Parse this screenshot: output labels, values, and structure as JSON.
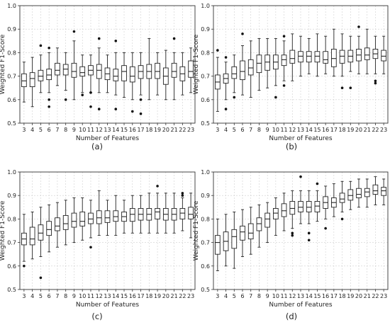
{
  "figure": {
    "panel_labels": [
      "(a)",
      "(b)",
      "(c)",
      "(d)"
    ]
  },
  "chart_data": [
    {
      "type": "box",
      "label": "(a)",
      "xlabel": "Number of Features",
      "ylabel": "Weighted F1-Score",
      "ylim": [
        0.5,
        1.0
      ],
      "yticks": [
        "0.5",
        "0.6",
        "0.7",
        "0.8",
        "0.9",
        "1.0"
      ],
      "grid": true,
      "categories": [
        "3",
        "4",
        "5",
        "6",
        "7",
        "8",
        "9",
        "10",
        "11",
        "12",
        "13",
        "14",
        "15",
        "16",
        "17",
        "18",
        "19",
        "20",
        "21",
        "22",
        "23"
      ],
      "boxes": [
        {
          "whislo": 0.59,
          "q1": 0.655,
          "med": 0.68,
          "q3": 0.71,
          "whishi": 0.76,
          "fliers": []
        },
        {
          "whislo": 0.57,
          "q1": 0.655,
          "med": 0.69,
          "q3": 0.715,
          "whishi": 0.78,
          "fliers": []
        },
        {
          "whislo": 0.63,
          "q1": 0.68,
          "med": 0.7,
          "q3": 0.725,
          "whishi": 0.79,
          "fliers": [
            0.83
          ]
        },
        {
          "whislo": 0.63,
          "q1": 0.685,
          "med": 0.705,
          "q3": 0.73,
          "whishi": 0.8,
          "fliers": [
            0.82,
            0.6,
            0.57
          ]
        },
        {
          "whislo": 0.66,
          "q1": 0.705,
          "med": 0.725,
          "q3": 0.755,
          "whishi": 0.82,
          "fliers": []
        },
        {
          "whislo": 0.64,
          "q1": 0.705,
          "med": 0.73,
          "q3": 0.75,
          "whishi": 0.8,
          "fliers": [
            0.6
          ]
        },
        {
          "whislo": 0.6,
          "q1": 0.695,
          "med": 0.72,
          "q3": 0.755,
          "whishi": 0.85,
          "fliers": [
            0.89
          ]
        },
        {
          "whislo": 0.63,
          "q1": 0.7,
          "med": 0.715,
          "q3": 0.74,
          "whishi": 0.79,
          "fliers": [
            0.62
          ]
        },
        {
          "whislo": 0.63,
          "q1": 0.705,
          "med": 0.725,
          "q3": 0.745,
          "whishi": 0.79,
          "fliers": [
            0.63,
            0.57
          ]
        },
        {
          "whislo": 0.63,
          "q1": 0.69,
          "med": 0.725,
          "q3": 0.75,
          "whishi": 0.82,
          "fliers": [
            0.86,
            0.56
          ]
        },
        {
          "whislo": 0.63,
          "q1": 0.685,
          "med": 0.71,
          "q3": 0.735,
          "whishi": 0.79,
          "fliers": []
        },
        {
          "whislo": 0.62,
          "q1": 0.68,
          "med": 0.7,
          "q3": 0.73,
          "whishi": 0.8,
          "fliers": [
            0.85,
            0.56
          ]
        },
        {
          "whislo": 0.61,
          "q1": 0.68,
          "med": 0.72,
          "q3": 0.745,
          "whishi": 0.8,
          "fliers": []
        },
        {
          "whislo": 0.6,
          "q1": 0.675,
          "med": 0.7,
          "q3": 0.74,
          "whishi": 0.8,
          "fliers": [
            0.55
          ]
        },
        {
          "whislo": 0.62,
          "q1": 0.69,
          "med": 0.72,
          "q3": 0.745,
          "whishi": 0.8,
          "fliers": [
            0.6,
            0.54
          ]
        },
        {
          "whislo": 0.6,
          "q1": 0.69,
          "med": 0.72,
          "q3": 0.75,
          "whishi": 0.86,
          "fliers": []
        },
        {
          "whislo": 0.62,
          "q1": 0.69,
          "med": 0.72,
          "q3": 0.755,
          "whishi": 0.8,
          "fliers": []
        },
        {
          "whislo": 0.6,
          "q1": 0.665,
          "med": 0.7,
          "q3": 0.735,
          "whishi": 0.81,
          "fliers": []
        },
        {
          "whislo": 0.6,
          "q1": 0.695,
          "med": 0.72,
          "q3": 0.755,
          "whishi": 0.8,
          "fliers": [
            0.86
          ]
        },
        {
          "whislo": 0.62,
          "q1": 0.68,
          "med": 0.71,
          "q3": 0.74,
          "whishi": 0.8,
          "fliers": []
        },
        {
          "whislo": 0.63,
          "q1": 0.695,
          "med": 0.72,
          "q3": 0.765,
          "whishi": 0.82,
          "fliers": []
        }
      ]
    },
    {
      "type": "box",
      "label": "(b)",
      "xlabel": "Number of Features",
      "ylabel": "Weighted F1-Score",
      "ylim": [
        0.5,
        1.0
      ],
      "yticks": [
        "0.5",
        "0.6",
        "0.7",
        "0.8",
        "0.9",
        "1.0"
      ],
      "grid": true,
      "categories": [
        "3",
        "4",
        "5",
        "6",
        "7",
        "8",
        "9",
        "10",
        "11",
        "12",
        "13",
        "14",
        "15",
        "16",
        "17",
        "18",
        "19",
        "20",
        "21",
        "22",
        "23"
      ],
      "boxes": [
        {
          "whislo": 0.55,
          "q1": 0.645,
          "med": 0.675,
          "q3": 0.705,
          "whishi": 0.78,
          "fliers": [
            0.81
          ]
        },
        {
          "whislo": 0.6,
          "q1": 0.67,
          "med": 0.69,
          "q3": 0.71,
          "whishi": 0.76,
          "fliers": [
            0.78,
            0.56
          ]
        },
        {
          "whislo": 0.63,
          "q1": 0.69,
          "med": 0.71,
          "q3": 0.74,
          "whishi": 0.79,
          "fliers": [
            0.61
          ]
        },
        {
          "whislo": 0.62,
          "q1": 0.685,
          "med": 0.72,
          "q3": 0.765,
          "whishi": 0.83,
          "fliers": [
            0.88
          ]
        },
        {
          "whislo": 0.61,
          "q1": 0.705,
          "med": 0.735,
          "q3": 0.77,
          "whishi": 0.85,
          "fliers": []
        },
        {
          "whislo": 0.64,
          "q1": 0.715,
          "med": 0.755,
          "q3": 0.79,
          "whishi": 0.86,
          "fliers": []
        },
        {
          "whislo": 0.65,
          "q1": 0.725,
          "med": 0.76,
          "q3": 0.79,
          "whishi": 0.86,
          "fliers": []
        },
        {
          "whislo": 0.66,
          "q1": 0.73,
          "med": 0.76,
          "q3": 0.79,
          "whishi": 0.86,
          "fliers": [
            0.61
          ]
        },
        {
          "whislo": 0.68,
          "q1": 0.745,
          "med": 0.77,
          "q3": 0.79,
          "whishi": 0.85,
          "fliers": [
            0.87,
            0.66
          ]
        },
        {
          "whislo": 0.68,
          "q1": 0.755,
          "med": 0.775,
          "q3": 0.81,
          "whishi": 0.88,
          "fliers": []
        },
        {
          "whislo": 0.7,
          "q1": 0.76,
          "med": 0.785,
          "q3": 0.805,
          "whishi": 0.87,
          "fliers": []
        },
        {
          "whislo": 0.71,
          "q1": 0.76,
          "med": 0.785,
          "q3": 0.805,
          "whishi": 0.86,
          "fliers": []
        },
        {
          "whislo": 0.7,
          "q1": 0.76,
          "med": 0.785,
          "q3": 0.805,
          "whishi": 0.88,
          "fliers": []
        },
        {
          "whislo": 0.71,
          "q1": 0.755,
          "med": 0.77,
          "q3": 0.805,
          "whishi": 0.87,
          "fliers": []
        },
        {
          "whislo": 0.7,
          "q1": 0.74,
          "med": 0.775,
          "q3": 0.815,
          "whishi": 0.9,
          "fliers": []
        },
        {
          "whislo": 0.7,
          "q1": 0.755,
          "med": 0.785,
          "q3": 0.81,
          "whishi": 0.88,
          "fliers": [
            0.65
          ]
        },
        {
          "whislo": 0.72,
          "q1": 0.76,
          "med": 0.785,
          "q3": 0.81,
          "whishi": 0.87,
          "fliers": [
            0.65
          ]
        },
        {
          "whislo": 0.71,
          "q1": 0.765,
          "med": 0.79,
          "q3": 0.815,
          "whishi": 0.87,
          "fliers": [
            0.91
          ]
        },
        {
          "whislo": 0.71,
          "q1": 0.77,
          "med": 0.79,
          "q3": 0.82,
          "whishi": 0.9,
          "fliers": []
        },
        {
          "whislo": 0.71,
          "q1": 0.775,
          "med": 0.795,
          "q3": 0.815,
          "whishi": 0.87,
          "fliers": [
            0.68,
            0.67
          ]
        },
        {
          "whislo": 0.71,
          "q1": 0.765,
          "med": 0.785,
          "q3": 0.81,
          "whishi": 0.87,
          "fliers": []
        }
      ]
    },
    {
      "type": "box",
      "label": "(c)",
      "xlabel": "Number of Features",
      "ylabel": "Weighted F1-Score",
      "ylim": [
        0.5,
        1.0
      ],
      "yticks": [
        "0.5",
        "0.6",
        "0.7",
        "0.8",
        "0.9",
        "1.0"
      ],
      "grid": true,
      "categories": [
        "3",
        "4",
        "5",
        "6",
        "7",
        "8",
        "9",
        "10",
        "11",
        "12",
        "13",
        "14",
        "15",
        "16",
        "17",
        "18",
        "19",
        "20",
        "21",
        "22",
        "23"
      ],
      "boxes": [
        {
          "whislo": 0.62,
          "q1": 0.69,
          "med": 0.715,
          "q3": 0.74,
          "whishi": 0.82,
          "fliers": [
            0.6
          ]
        },
        {
          "whislo": 0.63,
          "q1": 0.69,
          "med": 0.715,
          "q3": 0.765,
          "whishi": 0.83,
          "fliers": []
        },
        {
          "whislo": 0.64,
          "q1": 0.71,
          "med": 0.74,
          "q3": 0.775,
          "whishi": 0.85,
          "fliers": [
            0.55
          ]
        },
        {
          "whislo": 0.66,
          "q1": 0.73,
          "med": 0.755,
          "q3": 0.79,
          "whishi": 0.86,
          "fliers": []
        },
        {
          "whislo": 0.68,
          "q1": 0.75,
          "med": 0.77,
          "q3": 0.805,
          "whishi": 0.87,
          "fliers": []
        },
        {
          "whislo": 0.69,
          "q1": 0.755,
          "med": 0.78,
          "q3": 0.815,
          "whishi": 0.88,
          "fliers": []
        },
        {
          "whislo": 0.7,
          "q1": 0.765,
          "med": 0.79,
          "q3": 0.825,
          "whishi": 0.89,
          "fliers": []
        },
        {
          "whislo": 0.71,
          "q1": 0.77,
          "med": 0.79,
          "q3": 0.83,
          "whishi": 0.89,
          "fliers": []
        },
        {
          "whislo": 0.72,
          "q1": 0.78,
          "med": 0.8,
          "q3": 0.825,
          "whishi": 0.88,
          "fliers": [
            0.68
          ]
        },
        {
          "whislo": 0.73,
          "q1": 0.78,
          "med": 0.805,
          "q3": 0.835,
          "whishi": 0.92,
          "fliers": []
        },
        {
          "whislo": 0.73,
          "q1": 0.785,
          "med": 0.805,
          "q3": 0.835,
          "whishi": 0.88,
          "fliers": []
        },
        {
          "whislo": 0.73,
          "q1": 0.79,
          "med": 0.81,
          "q3": 0.835,
          "whishi": 0.9,
          "fliers": []
        },
        {
          "whislo": 0.74,
          "q1": 0.79,
          "med": 0.81,
          "q3": 0.83,
          "whishi": 0.88,
          "fliers": []
        },
        {
          "whislo": 0.74,
          "q1": 0.79,
          "med": 0.82,
          "q3": 0.845,
          "whishi": 0.9,
          "fliers": []
        },
        {
          "whislo": 0.74,
          "q1": 0.795,
          "med": 0.82,
          "q3": 0.845,
          "whishi": 0.9,
          "fliers": []
        },
        {
          "whislo": 0.74,
          "q1": 0.795,
          "med": 0.82,
          "q3": 0.845,
          "whishi": 0.91,
          "fliers": []
        },
        {
          "whislo": 0.74,
          "q1": 0.8,
          "med": 0.83,
          "q3": 0.845,
          "whishi": 0.91,
          "fliers": [
            0.94
          ]
        },
        {
          "whislo": 0.74,
          "q1": 0.795,
          "med": 0.82,
          "q3": 0.845,
          "whishi": 0.91,
          "fliers": []
        },
        {
          "whislo": 0.74,
          "q1": 0.795,
          "med": 0.82,
          "q3": 0.845,
          "whishi": 0.91,
          "fliers": []
        },
        {
          "whislo": 0.75,
          "q1": 0.8,
          "med": 0.825,
          "q3": 0.845,
          "whishi": 0.89,
          "fliers": [
            0.91,
            0.9
          ]
        },
        {
          "whislo": 0.72,
          "q1": 0.8,
          "med": 0.82,
          "q3": 0.85,
          "whishi": 0.91,
          "fliers": []
        }
      ]
    },
    {
      "type": "box",
      "label": "(d)",
      "xlabel": "Number of Features",
      "ylabel": "Weighted F1-Score",
      "ylim": [
        0.5,
        1.0
      ],
      "yticks": [
        "0.5",
        "0.6",
        "0.7",
        "0.8",
        "0.9",
        "1.0"
      ],
      "grid": true,
      "categories": [
        "3",
        "4",
        "5",
        "6",
        "7",
        "8",
        "9",
        "10",
        "11",
        "12",
        "13",
        "14",
        "15",
        "16",
        "17",
        "18",
        "19",
        "20",
        "21",
        "22",
        "23"
      ],
      "boxes": [
        {
          "whislo": 0.58,
          "q1": 0.65,
          "med": 0.7,
          "q3": 0.73,
          "whishi": 0.8,
          "fliers": []
        },
        {
          "whislo": 0.6,
          "q1": 0.665,
          "med": 0.705,
          "q3": 0.745,
          "whishi": 0.82,
          "fliers": []
        },
        {
          "whislo": 0.59,
          "q1": 0.675,
          "med": 0.725,
          "q3": 0.755,
          "whishi": 0.83,
          "fliers": []
        },
        {
          "whislo": 0.64,
          "q1": 0.71,
          "med": 0.745,
          "q3": 0.77,
          "whishi": 0.84,
          "fliers": []
        },
        {
          "whislo": 0.65,
          "q1": 0.715,
          "med": 0.74,
          "q3": 0.78,
          "whishi": 0.85,
          "fliers": []
        },
        {
          "whislo": 0.68,
          "q1": 0.75,
          "med": 0.78,
          "q3": 0.805,
          "whishi": 0.86,
          "fliers": []
        },
        {
          "whislo": 0.7,
          "q1": 0.765,
          "med": 0.8,
          "q3": 0.825,
          "whishi": 0.87,
          "fliers": []
        },
        {
          "whislo": 0.73,
          "q1": 0.8,
          "med": 0.825,
          "q3": 0.845,
          "whishi": 0.89,
          "fliers": []
        },
        {
          "whislo": 0.75,
          "q1": 0.81,
          "med": 0.835,
          "q3": 0.865,
          "whishi": 0.91,
          "fliers": []
        },
        {
          "whislo": 0.76,
          "q1": 0.82,
          "med": 0.845,
          "q3": 0.875,
          "whishi": 0.92,
          "fliers": [
            0.74,
            0.73
          ]
        },
        {
          "whislo": 0.78,
          "q1": 0.83,
          "med": 0.85,
          "q3": 0.875,
          "whishi": 0.92,
          "fliers": [
            0.98
          ]
        },
        {
          "whislo": 0.78,
          "q1": 0.83,
          "med": 0.85,
          "q3": 0.875,
          "whishi": 0.92,
          "fliers": [
            0.74,
            0.71
          ]
        },
        {
          "whislo": 0.79,
          "q1": 0.83,
          "med": 0.855,
          "q3": 0.875,
          "whishi": 0.92,
          "fliers": [
            0.95
          ]
        },
        {
          "whislo": 0.8,
          "q1": 0.845,
          "med": 0.87,
          "q3": 0.895,
          "whishi": 0.94,
          "fliers": [
            0.76
          ]
        },
        {
          "whislo": 0.81,
          "q1": 0.85,
          "med": 0.87,
          "q3": 0.89,
          "whishi": 0.95,
          "fliers": []
        },
        {
          "whislo": 0.83,
          "q1": 0.87,
          "med": 0.885,
          "q3": 0.91,
          "whishi": 0.96,
          "fliers": [
            0.8
          ]
        },
        {
          "whislo": 0.84,
          "q1": 0.88,
          "med": 0.9,
          "q3": 0.925,
          "whishi": 0.96,
          "fliers": []
        },
        {
          "whislo": 0.85,
          "q1": 0.89,
          "med": 0.905,
          "q3": 0.93,
          "whishi": 0.97,
          "fliers": []
        },
        {
          "whislo": 0.85,
          "q1": 0.895,
          "med": 0.915,
          "q3": 0.93,
          "whishi": 0.97,
          "fliers": []
        },
        {
          "whislo": 0.86,
          "q1": 0.905,
          "med": 0.92,
          "q3": 0.945,
          "whishi": 0.98,
          "fliers": []
        },
        {
          "whislo": 0.86,
          "q1": 0.9,
          "med": 0.92,
          "q3": 0.935,
          "whishi": 0.97,
          "fliers": []
        }
      ]
    }
  ]
}
